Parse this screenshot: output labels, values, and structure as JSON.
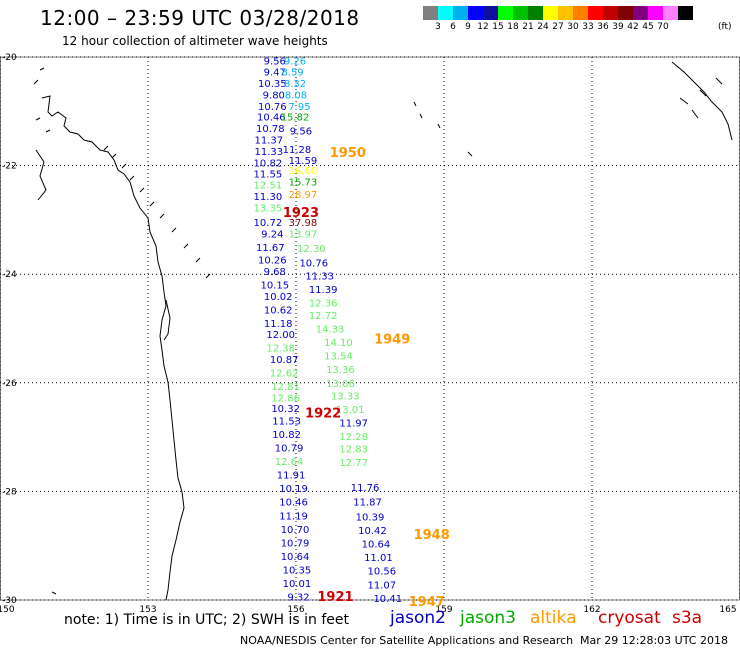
{
  "header": {
    "title": "12:00 – 23:59 UTC 03/28/2018",
    "subtitle": "12 hour collection of altimeter wave heights"
  },
  "legend": {
    "colors": [
      "#808080",
      "#00ffff",
      "#00b0f0",
      "#0000ff",
      "#1010a0",
      "#00ff00",
      "#00c000",
      "#008000",
      "#ffff00",
      "#ffc000",
      "#ff8000",
      "#ff0000",
      "#c00000",
      "#800000",
      "#800080",
      "#ff00ff",
      "#ff80ff",
      "#000000"
    ],
    "labels": [
      "3",
      "6",
      "9",
      "12",
      "15",
      "18",
      "21",
      "24",
      "27",
      "30",
      "33",
      "36",
      "39",
      "42",
      "45",
      "70"
    ],
    "unit": "(ft)"
  },
  "map": {
    "lon_ticks": [
      "150",
      "153",
      "156",
      "159",
      "162",
      "165"
    ],
    "lat_ticks": [
      "-20",
      "-22",
      "-24",
      "-26",
      "-28",
      "-30"
    ],
    "lon_range": [
      150,
      165
    ],
    "lat_range": [
      -30,
      -20
    ],
    "grid": "dotted"
  },
  "satellite_colors": {
    "jason2": "#0000cc",
    "jason3": "#00aa00",
    "altika": "#ff9900",
    "cryosat": "#cc0000",
    "s3a": "#cc0000"
  },
  "observations": [
    {
      "v": "9.56",
      "c": "#0000cc",
      "lon": 155.57,
      "lat": -20.06
    },
    {
      "v": "9.26",
      "c": "#00b0f0",
      "lon": 155.98,
      "lat": -20.06
    },
    {
      "v": "9.47",
      "c": "#0000cc",
      "lon": 155.57,
      "lat": -20.27
    },
    {
      "v": "8.59",
      "c": "#00b0f0",
      "lon": 155.93,
      "lat": -20.27
    },
    {
      "v": "10.35",
      "c": "#0000cc",
      "lon": 155.52,
      "lat": -20.48
    },
    {
      "v": "8.32",
      "c": "#00b0f0",
      "lon": 155.98,
      "lat": -20.48
    },
    {
      "v": "9.80",
      "c": "#0000cc",
      "lon": 155.55,
      "lat": -20.69
    },
    {
      "v": "8.08",
      "c": "#00b0f0",
      "lon": 156.0,
      "lat": -20.69
    },
    {
      "v": "10.76",
      "c": "#0000cc",
      "lon": 155.52,
      "lat": -20.9
    },
    {
      "v": "7.95",
      "c": "#00b0f0",
      "lon": 156.07,
      "lat": -20.9
    },
    {
      "v": "10.46",
      "c": "#0000cc",
      "lon": 155.5,
      "lat": -21.1
    },
    {
      "v": "15.82",
      "c": "#00aa00",
      "lon": 155.98,
      "lat": -21.1
    },
    {
      "v": "10.78",
      "c": "#0000cc",
      "lon": 155.48,
      "lat": -21.31
    },
    {
      "v": "9.56",
      "c": "#0000cc",
      "lon": 156.1,
      "lat": -21.35
    },
    {
      "v": "11.37",
      "c": "#0000cc",
      "lon": 155.45,
      "lat": -21.52
    },
    {
      "v": "11.28",
      "c": "#0000cc",
      "lon": 156.02,
      "lat": -21.69
    },
    {
      "v": "11.33",
      "c": "#0000cc",
      "lon": 155.45,
      "lat": -21.73
    },
    {
      "v": "10.82",
      "c": "#0000cc",
      "lon": 155.43,
      "lat": -21.94
    },
    {
      "v": "11.59",
      "c": "#0000cc",
      "lon": 156.14,
      "lat": -21.9
    },
    {
      "v": "11.55",
      "c": "#0000cc",
      "lon": 155.43,
      "lat": -22.15
    },
    {
      "v": "16.60",
      "c": "#ffff00",
      "lon": 156.14,
      "lat": -22.08
    },
    {
      "v": "12.51",
      "c": "#66ee66",
      "lon": 155.43,
      "lat": -22.35
    },
    {
      "v": "15.73",
      "c": "#00aa00",
      "lon": 156.14,
      "lat": -22.29
    },
    {
      "v": "11.30",
      "c": "#0000cc",
      "lon": 155.43,
      "lat": -22.56
    },
    {
      "v": "28.97",
      "c": "#ff9900",
      "lon": 156.14,
      "lat": -22.52
    },
    {
      "v": "13.35",
      "c": "#66ee66",
      "lon": 155.43,
      "lat": -22.77
    },
    {
      "v": "10.72",
      "c": "#0000cc",
      "lon": 155.43,
      "lat": -23.04
    },
    {
      "v": "37.98",
      "c": "#800000",
      "lon": 156.14,
      "lat": -23.04
    },
    {
      "v": "9.24",
      "c": "#0000cc",
      "lon": 155.52,
      "lat": -23.25
    },
    {
      "v": "13.97",
      "c": "#66ee66",
      "lon": 156.14,
      "lat": -23.25
    },
    {
      "v": "11.67",
      "c": "#0000cc",
      "lon": 155.48,
      "lat": -23.5
    },
    {
      "v": "12.30",
      "c": "#66ee66",
      "lon": 156.31,
      "lat": -23.52
    },
    {
      "v": "10.26",
      "c": "#0000cc",
      "lon": 155.52,
      "lat": -23.73
    },
    {
      "v": "10.76",
      "c": "#0000cc",
      "lon": 156.36,
      "lat": -23.78
    },
    {
      "v": "9.68",
      "c": "#0000cc",
      "lon": 155.57,
      "lat": -23.94
    },
    {
      "v": "11.33",
      "c": "#0000cc",
      "lon": 156.48,
      "lat": -24.02
    },
    {
      "v": "10.15",
      "c": "#0000cc",
      "lon": 155.57,
      "lat": -24.19
    },
    {
      "v": "11.39",
      "c": "#0000cc",
      "lon": 156.55,
      "lat": -24.27
    },
    {
      "v": "10.02",
      "c": "#0000cc",
      "lon": 155.64,
      "lat": -24.4
    },
    {
      "v": "12.36",
      "c": "#66ee66",
      "lon": 156.55,
      "lat": -24.52
    },
    {
      "v": "10.62",
      "c": "#0000cc",
      "lon": 155.64,
      "lat": -24.65
    },
    {
      "v": "12.72",
      "c": "#66ee66",
      "lon": 156.55,
      "lat": -24.75
    },
    {
      "v": "11.18",
      "c": "#0000cc",
      "lon": 155.64,
      "lat": -24.9
    },
    {
      "v": "14.33",
      "c": "#66ee66",
      "lon": 156.69,
      "lat": -25.0
    },
    {
      "v": "12.00",
      "c": "#0000cc",
      "lon": 155.69,
      "lat": -25.1
    },
    {
      "v": "14.10",
      "c": "#66ee66",
      "lon": 156.86,
      "lat": -25.25
    },
    {
      "v": "12.38",
      "c": "#66ee66",
      "lon": 155.69,
      "lat": -25.35
    },
    {
      "v": "13.54",
      "c": "#66ee66",
      "lon": 156.86,
      "lat": -25.5
    },
    {
      "v": "10.87",
      "c": "#0000cc",
      "lon": 155.76,
      "lat": -25.56
    },
    {
      "v": "13.36",
      "c": "#66ee66",
      "lon": 156.9,
      "lat": -25.75
    },
    {
      "v": "12.62",
      "c": "#66ee66",
      "lon": 155.76,
      "lat": -25.81
    },
    {
      "v": "13.06",
      "c": "#66ee66",
      "lon": 156.9,
      "lat": -26.0
    },
    {
      "v": "12.81",
      "c": "#66ee66",
      "lon": 155.79,
      "lat": -26.06
    },
    {
      "v": "13.33",
      "c": "#66ee66",
      "lon": 157.0,
      "lat": -26.23
    },
    {
      "v": "12.86",
      "c": "#66ee66",
      "lon": 155.79,
      "lat": -26.27
    },
    {
      "v": "13.01",
      "c": "#66ee66",
      "lon": 157.1,
      "lat": -26.48
    },
    {
      "v": "10.32",
      "c": "#0000cc",
      "lon": 155.79,
      "lat": -26.46
    },
    {
      "v": "11.53",
      "c": "#0000cc",
      "lon": 155.81,
      "lat": -26.69
    },
    {
      "v": "11.97",
      "c": "#0000cc",
      "lon": 157.17,
      "lat": -26.73
    },
    {
      "v": "10.82",
      "c": "#0000cc",
      "lon": 155.81,
      "lat": -26.94
    },
    {
      "v": "12.28",
      "c": "#66ee66",
      "lon": 157.17,
      "lat": -26.98
    },
    {
      "v": "10.79",
      "c": "#0000cc",
      "lon": 155.86,
      "lat": -27.19
    },
    {
      "v": "12.83",
      "c": "#66ee66",
      "lon": 157.17,
      "lat": -27.21
    },
    {
      "v": "12.64",
      "c": "#66ee66",
      "lon": 155.86,
      "lat": -27.44
    },
    {
      "v": "12.77",
      "c": "#66ee66",
      "lon": 157.17,
      "lat": -27.46
    },
    {
      "v": "11.91",
      "c": "#0000cc",
      "lon": 155.9,
      "lat": -27.69
    },
    {
      "v": "11.76",
      "c": "#0000cc",
      "lon": 157.4,
      "lat": -27.92
    },
    {
      "v": "10.19",
      "c": "#0000cc",
      "lon": 155.95,
      "lat": -27.94
    },
    {
      "v": "11.87",
      "c": "#0000cc",
      "lon": 157.45,
      "lat": -28.19
    },
    {
      "v": "10.46",
      "c": "#0000cc",
      "lon": 155.95,
      "lat": -28.19
    },
    {
      "v": "10.39",
      "c": "#0000cc",
      "lon": 157.5,
      "lat": -28.46
    },
    {
      "v": "11.19",
      "c": "#0000cc",
      "lon": 155.95,
      "lat": -28.44
    },
    {
      "v": "10.42",
      "c": "#0000cc",
      "lon": 157.55,
      "lat": -28.71
    },
    {
      "v": "10.70",
      "c": "#0000cc",
      "lon": 155.98,
      "lat": -28.69
    },
    {
      "v": "10.79",
      "c": "#0000cc",
      "lon": 155.98,
      "lat": -28.94
    },
    {
      "v": "10.64",
      "c": "#0000cc",
      "lon": 157.62,
      "lat": -28.96
    },
    {
      "v": "10.64",
      "c": "#0000cc",
      "lon": 155.98,
      "lat": -29.19
    },
    {
      "v": "11.01",
      "c": "#0000cc",
      "lon": 157.67,
      "lat": -29.21
    },
    {
      "v": "10.35",
      "c": "#0000cc",
      "lon": 156.02,
      "lat": -29.44
    },
    {
      "v": "10.56",
      "c": "#0000cc",
      "lon": 157.74,
      "lat": -29.46
    },
    {
      "v": "10.01",
      "c": "#0000cc",
      "lon": 156.02,
      "lat": -29.69
    },
    {
      "v": "11.07",
      "c": "#0000cc",
      "lon": 157.74,
      "lat": -29.71
    },
    {
      "v": "9.32",
      "c": "#0000cc",
      "lon": 156.05,
      "lat": -29.94
    },
    {
      "v": "10.41",
      "c": "#0000cc",
      "lon": 157.86,
      "lat": -29.96
    }
  ],
  "passes": [
    {
      "v": "1950",
      "c": "#ff9900",
      "lon": 157.05,
      "lat": -21.75
    },
    {
      "v": "1923",
      "c": "#cc0000",
      "lon": 156.1,
      "lat": -22.85
    },
    {
      "v": "1949",
      "c": "#ff9900",
      "lon": 157.95,
      "lat": -25.18
    },
    {
      "v": "1922",
      "c": "#cc0000",
      "lon": 156.55,
      "lat": -26.55
    },
    {
      "v": "1948",
      "c": "#ff9900",
      "lon": 158.75,
      "lat": -28.78
    },
    {
      "v": "1921",
      "c": "#cc0000",
      "lon": 156.8,
      "lat": -29.93
    },
    {
      "v": "1947",
      "c": "#ff9900",
      "lon": 158.65,
      "lat": -30.02
    }
  ],
  "footer": {
    "note": "note: 1) Time is in UTC; 2) SWH is in feet",
    "sat_jason2": "jason2",
    "sat_jason3": "jason3",
    "sat_altika": "altika",
    "sat_cryosat": "cryosat",
    "sat_s3a": "s3a",
    "credit": "NOAA/NESDIS Center for Satellite Applications and Research",
    "timestamp": "Mar 29 12:28:03 UTC 2018"
  }
}
